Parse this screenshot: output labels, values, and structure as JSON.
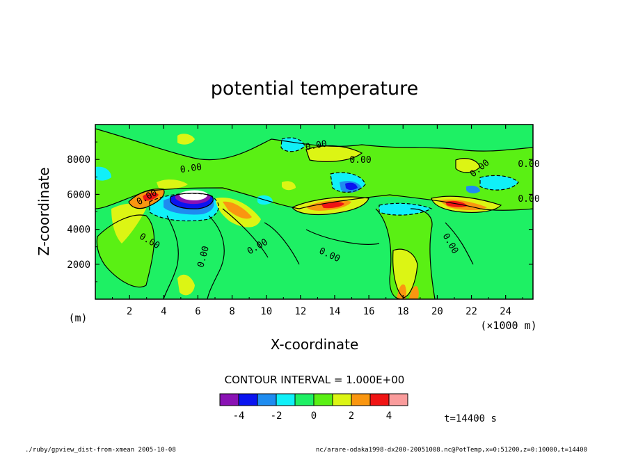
{
  "chart_data": {
    "type": "contour",
    "title": "potential temperature",
    "xlabel": "X-coordinate",
    "ylabel": "Z-coordinate",
    "x_unit": "(×1000 m)",
    "y_unit": "(m)",
    "xlim": [
      0,
      25.6
    ],
    "ylim": [
      0,
      10000
    ],
    "x_ticks": [
      2,
      4,
      6,
      8,
      10,
      12,
      14,
      16,
      18,
      20,
      22,
      24
    ],
    "y_ticks": [
      2000,
      4000,
      6000,
      8000
    ],
    "contour_interval_text": "CONTOUR INTERVAL = 1.000E+00",
    "contour_labels": [
      "0.00",
      "0.00",
      "0.00",
      "0.00",
      "0.00",
      "0.00",
      "0.00",
      "0.00",
      "0.00",
      "0.00",
      "0.00",
      "0.00"
    ],
    "colorbar": {
      "boundaries": [
        -5,
        -4,
        -3,
        -2,
        -1,
        0,
        1,
        2,
        3,
        4,
        5
      ],
      "tick_labels": [
        "-4",
        "-2",
        "0",
        "2",
        "4"
      ],
      "colors": [
        "#8a12b4",
        "#0a14f0",
        "#1e8cf0",
        "#10f0f8",
        "#1ef064",
        "#5af014",
        "#dcf514",
        "#fa9610",
        "#f01414",
        "#fa9c9c"
      ]
    },
    "time_label": "t=14400 s",
    "features": [
      {
        "x": 5.3,
        "z": 5800,
        "value": -5
      },
      {
        "x": 5.2,
        "z": 5500,
        "value": -3
      },
      {
        "x": 3.6,
        "z": 5700,
        "value": 3
      },
      {
        "x": 8.5,
        "z": 5300,
        "value": 2
      },
      {
        "x": 14.2,
        "z": 5300,
        "value": 4
      },
      {
        "x": 15.0,
        "z": 6300,
        "value": -3
      },
      {
        "x": 21.0,
        "z": 5300,
        "value": 3
      },
      {
        "x": 9.0,
        "z": 8200,
        "value": -1
      },
      {
        "x": 12.5,
        "z": 8300,
        "value": 1
      },
      {
        "x": 18.0,
        "z": 1000,
        "value": 2
      }
    ]
  },
  "footer": {
    "left": "./ruby/gpview_dist-from-xmean   2005-10-08",
    "right": "nc/arare-odaka1998-dx200-20051008.nc@PotTemp,x=0:51200,z=0:10000,t=14400"
  }
}
